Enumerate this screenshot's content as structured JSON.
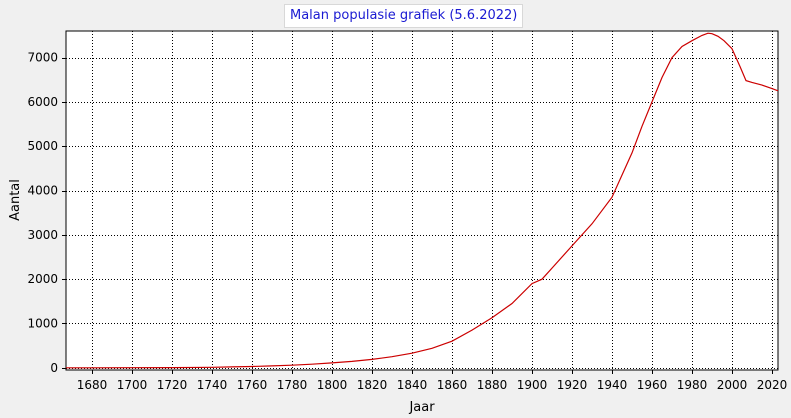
{
  "chart_data": {
    "type": "line",
    "title": "Malan populasie grafiek (5.6.2022)",
    "xlabel": "Jaar",
    "ylabel": "Aantal",
    "xlim": [
      1667,
      2023
    ],
    "ylim": [
      -50,
      7600
    ],
    "x_ticks": [
      1680,
      1700,
      1720,
      1740,
      1760,
      1780,
      1800,
      1820,
      1840,
      1860,
      1880,
      1900,
      1920,
      1940,
      1960,
      1980,
      2000,
      2020
    ],
    "y_ticks": [
      0,
      1000,
      2000,
      3000,
      4000,
      5000,
      6000,
      7000
    ],
    "grid": true,
    "line_color": "#cc0000",
    "series": [
      {
        "x": [
          1667,
          1680,
          1700,
          1720,
          1740,
          1750,
          1760,
          1770,
          1780,
          1790,
          1800,
          1810,
          1820,
          1830,
          1840,
          1850,
          1860,
          1870,
          1880,
          1890,
          1900,
          1905,
          1910,
          1920,
          1930,
          1940,
          1950,
          1955,
          1960,
          1965,
          1970,
          1975,
          1980,
          1985,
          1988,
          1990,
          1993,
          1996,
          2000,
          2004,
          2007,
          2010,
          2015,
          2020,
          2023
        ],
        "y": [
          0,
          0,
          2,
          5,
          12,
          20,
          30,
          42,
          58,
          80,
          110,
          145,
          190,
          250,
          330,
          440,
          600,
          850,
          1130,
          1450,
          1900,
          2000,
          2250,
          2750,
          3250,
          3850,
          4850,
          5450,
          6000,
          6550,
          7000,
          7250,
          7380,
          7500,
          7550,
          7540,
          7480,
          7380,
          7200,
          6800,
          6480,
          6440,
          6380,
          6300,
          6250
        ]
      }
    ]
  }
}
